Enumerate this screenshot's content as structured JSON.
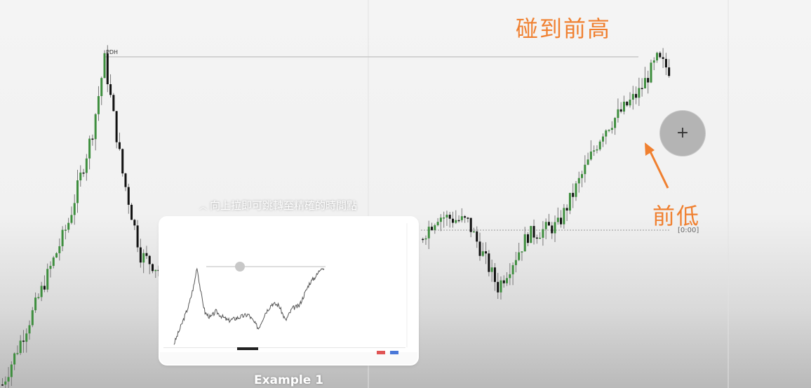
{
  "annotations": {
    "title": "碰到前高",
    "low_label": "前低",
    "pdh_label": "PDH",
    "time_label": "[0:00]"
  },
  "colors": {
    "annotation": "#f08030",
    "bull_candle": "#3e8e3e",
    "bear_candle": "#111111",
    "level_line": "#c8c8c8"
  },
  "controls": {
    "zoom_icon": "plus-icon",
    "zoom_symbol": "+"
  },
  "scrub_hint": {
    "icon": "chevron-up-icon",
    "text": "向上拉即可跳轉至精確的時間點"
  },
  "thumbnail": {
    "caption": "Example 1"
  },
  "chart_data": {
    "type": "candlestick",
    "levels": [
      "PDH",
      "前低"
    ],
    "price_path": [
      {
        "t": 0,
        "p": 0.0
      },
      {
        "t": 10,
        "p": 0.22
      },
      {
        "t": 22,
        "p": 0.5
      },
      {
        "t": 30,
        "p": 0.78
      },
      {
        "t": 34,
        "p": 1.0
      },
      {
        "t": 40,
        "p": 0.65
      },
      {
        "t": 46,
        "p": 0.4
      },
      {
        "t": 54,
        "p": 0.34
      },
      {
        "t": 62,
        "p": 0.42
      },
      {
        "t": 70,
        "p": 0.36
      },
      {
        "t": 80,
        "p": 0.3
      },
      {
        "t": 95,
        "p": 0.34
      },
      {
        "t": 110,
        "p": 0.38
      },
      {
        "t": 125,
        "p": 0.2
      },
      {
        "t": 135,
        "p": 0.4
      },
      {
        "t": 145,
        "p": 0.52
      },
      {
        "t": 155,
        "p": 0.5
      },
      {
        "t": 165,
        "p": 0.3
      },
      {
        "t": 175,
        "p": 0.46
      },
      {
        "t": 185,
        "p": 0.49
      },
      {
        "t": 200,
        "p": 0.78
      },
      {
        "t": 212,
        "p": 0.9
      },
      {
        "t": 218,
        "p": 1.0
      },
      {
        "t": 222,
        "p": 0.97
      }
    ]
  }
}
